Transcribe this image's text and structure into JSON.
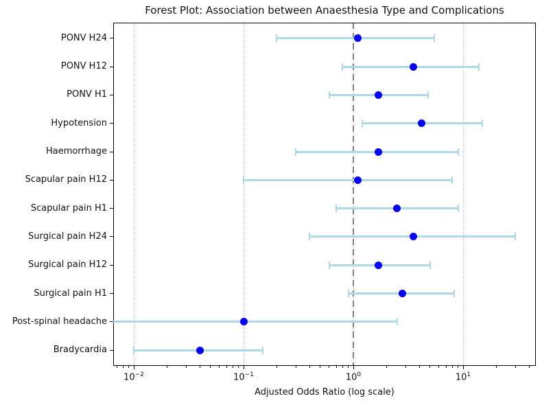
{
  "chart_data": {
    "type": "scatter",
    "subtype": "forest-plot-horizontal-error-bars",
    "title": "Forest Plot: Association between Anaesthesia Type and Complications",
    "xlabel": "Adjusted Odds Ratio (log scale)",
    "ylabel": "",
    "x_scale": "log",
    "x_axis_range": [
      0.0065,
      46
    ],
    "grid": "major-x-dotted",
    "legend": "none",
    "reference_line": {
      "value": 1,
      "style": "dashed",
      "color": "#808080"
    },
    "colors": {
      "marker": "#0000ff",
      "error_bar": "#add8e6",
      "grid": "#c9c9c9",
      "axis": "#000000"
    },
    "x_major_ticks": [
      {
        "value": 0.01,
        "base": "10",
        "sup": "−2"
      },
      {
        "value": 0.1,
        "base": "10",
        "sup": "−1"
      },
      {
        "value": 1,
        "base": "10",
        "sup": "0"
      },
      {
        "value": 10,
        "base": "10",
        "sup": "1"
      }
    ],
    "rows": [
      {
        "label": "PONV H24",
        "or": 1.1,
        "ci_low": 0.2,
        "ci_high": 5.5,
        "ci_low_offscale": false
      },
      {
        "label": "PONV H12",
        "or": 3.5,
        "ci_low": 0.8,
        "ci_high": 14,
        "ci_low_offscale": false
      },
      {
        "label": "PONV H1",
        "or": 1.7,
        "ci_low": 0.6,
        "ci_high": 4.8,
        "ci_low_offscale": false
      },
      {
        "label": "Hypotension",
        "or": 4.2,
        "ci_low": 1.2,
        "ci_high": 15,
        "ci_low_offscale": false
      },
      {
        "label": "Haemorrhage",
        "or": 1.7,
        "ci_low": 0.3,
        "ci_high": 9,
        "ci_low_offscale": false
      },
      {
        "label": "Scapular pain H12",
        "or": 1.1,
        "ci_low": 0.1,
        "ci_high": 8,
        "ci_low_offscale": false
      },
      {
        "label": "Scapular pain H1",
        "or": 2.5,
        "ci_low": 0.7,
        "ci_high": 9,
        "ci_low_offscale": false
      },
      {
        "label": "Surgical pain H24",
        "or": 3.5,
        "ci_low": 0.4,
        "ci_high": 30,
        "ci_low_offscale": false
      },
      {
        "label": "Surgical pain H12",
        "or": 1.7,
        "ci_low": 0.6,
        "ci_high": 5,
        "ci_low_offscale": false
      },
      {
        "label": "Surgical pain H1",
        "or": 2.8,
        "ci_low": 0.9,
        "ci_high": 8.3,
        "ci_low_offscale": false
      },
      {
        "label": "Post-spinal headache",
        "or": 0.1,
        "ci_low": null,
        "ci_high": 2.5,
        "ci_low_offscale": true
      },
      {
        "label": "Bradycardia",
        "or": 0.04,
        "ci_low": 0.01,
        "ci_high": 0.15,
        "ci_low_offscale": false
      }
    ]
  }
}
